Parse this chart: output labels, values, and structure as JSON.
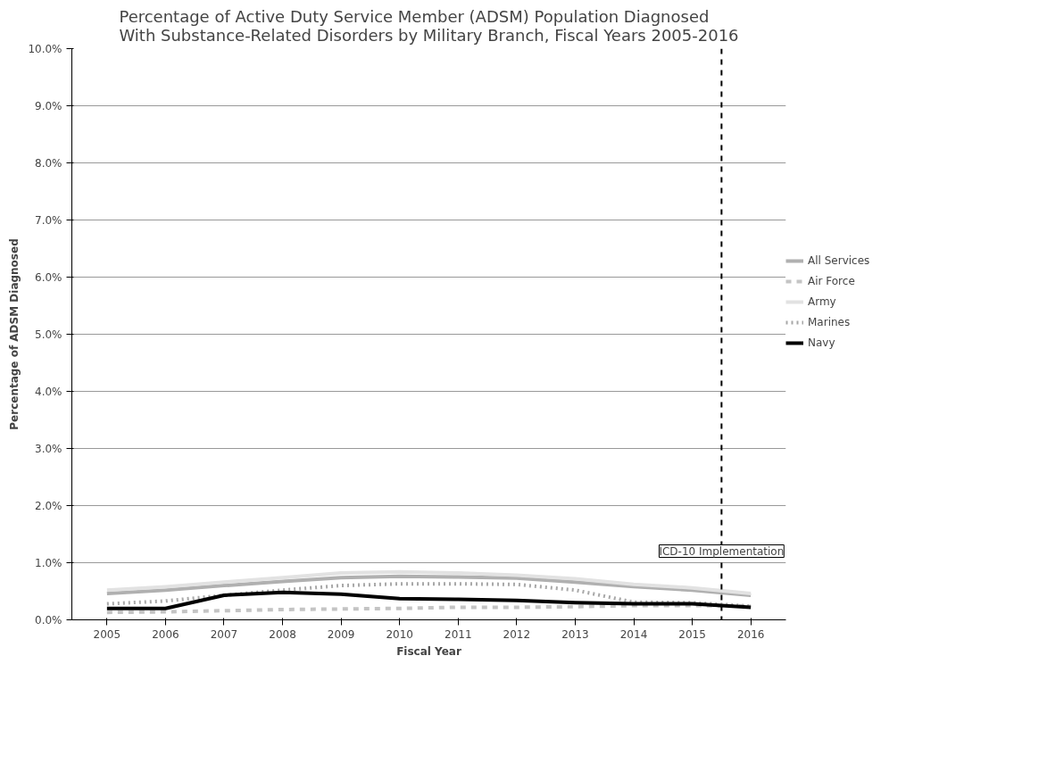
{
  "chart_data": {
    "type": "line",
    "title": "Percentage of Active Duty Service Member (ADSM) Population Diagnosed\nWith Substance-Related Disorders by Military Branch, Fiscal Years 2005-2016",
    "xlabel": "Fiscal Year",
    "ylabel": "Percentage of ADSM Diagnosed",
    "x": [
      2005,
      2006,
      2007,
      2008,
      2009,
      2010,
      2011,
      2012,
      2013,
      2014,
      2015,
      2016
    ],
    "xlim": [
      2004.4,
      2016.6
    ],
    "xticks": [
      2005,
      2006,
      2007,
      2008,
      2009,
      2010,
      2011,
      2012,
      2013,
      2014,
      2015,
      2016
    ],
    "ylim": [
      0,
      10
    ],
    "yticks": [
      {
        "value": 0,
        "label": "0.0%"
      },
      {
        "value": 1,
        "label": "1.0%"
      },
      {
        "value": 2,
        "label": "2.0%"
      },
      {
        "value": 3,
        "label": "3.0%"
      },
      {
        "value": 4,
        "label": "4.0%"
      },
      {
        "value": 5,
        "label": "5.0%"
      },
      {
        "value": 6,
        "label": "6.0%"
      },
      {
        "value": 7,
        "label": "7.0%"
      },
      {
        "value": 8,
        "label": "8.0%"
      },
      {
        "value": 9,
        "label": "9.0%"
      },
      {
        "value": 10,
        "label": "10.0%"
      }
    ],
    "grid": "y",
    "legend": "right",
    "series": [
      {
        "name": "All Services",
        "color": "#b0b0b0",
        "values": [
          0.46,
          0.52,
          0.6,
          0.67,
          0.74,
          0.76,
          0.75,
          0.73,
          0.66,
          0.58,
          0.52,
          0.43
        ]
      },
      {
        "name": "Air Force",
        "color": "#c4c4c4",
        "line_style": "dashed",
        "values": [
          0.13,
          0.14,
          0.16,
          0.18,
          0.19,
          0.2,
          0.22,
          0.22,
          0.23,
          0.25,
          0.25,
          0.24
        ]
      },
      {
        "name": "Army",
        "color": "#e2e2e2",
        "values": [
          0.52,
          0.58,
          0.66,
          0.74,
          0.82,
          0.84,
          0.82,
          0.78,
          0.72,
          0.62,
          0.56,
          0.46
        ]
      },
      {
        "name": "Marines",
        "color": "#a8a8a8",
        "line_style": "dotted",
        "values": [
          0.28,
          0.33,
          0.43,
          0.52,
          0.6,
          0.63,
          0.63,
          0.62,
          0.52,
          0.31,
          0.3,
          0.24
        ]
      },
      {
        "name": "Navy",
        "color": "#000000",
        "values": [
          0.2,
          0.2,
          0.43,
          0.48,
          0.45,
          0.37,
          0.36,
          0.34,
          0.3,
          0.28,
          0.28,
          0.22
        ]
      }
    ],
    "ref_lines": [
      {
        "axis": "x",
        "value": 2015.5,
        "label": "ICD-10 Implementation",
        "color": "#000000",
        "line_style": "dashed"
      }
    ]
  }
}
